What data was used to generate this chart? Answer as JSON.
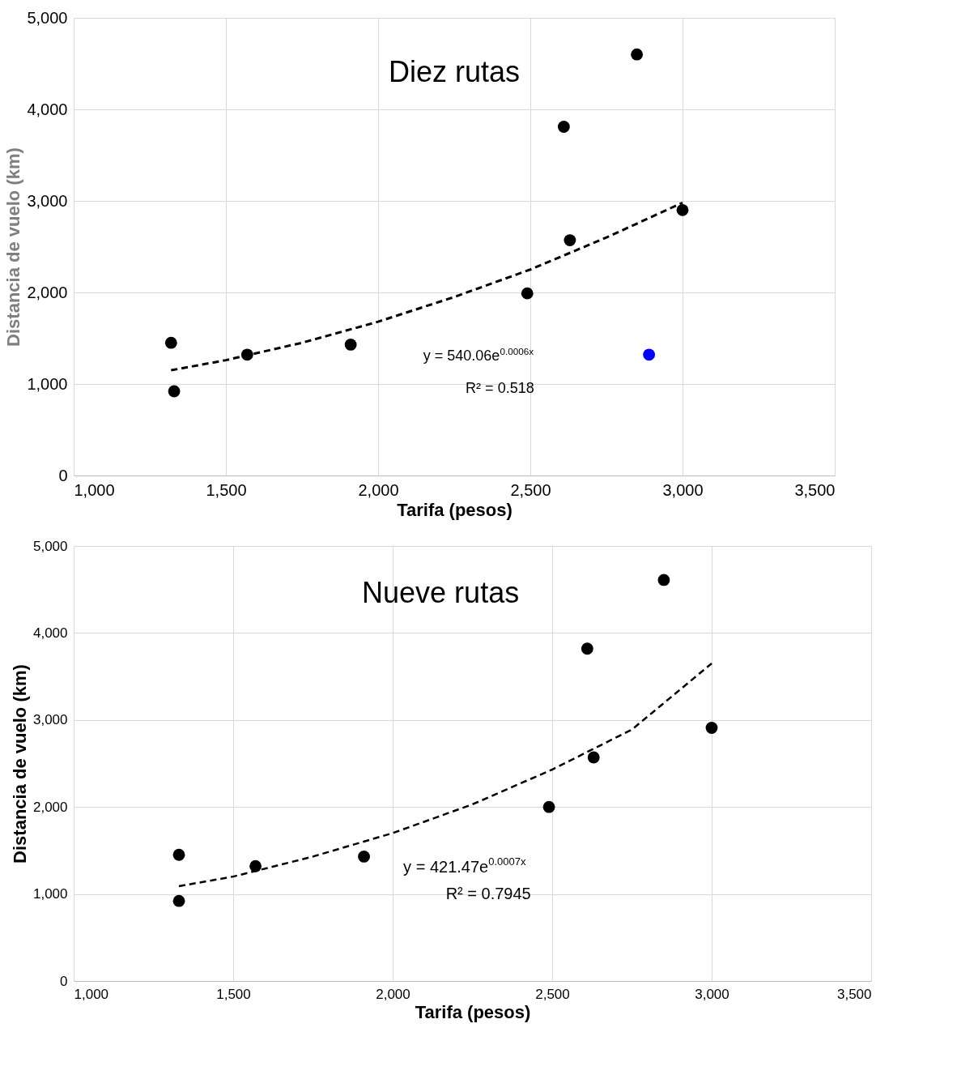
{
  "chart_data": [
    {
      "type": "scatter",
      "xlabel": "Tarifa (pesos)",
      "ylabel": "Distancia  de vuelo (km)",
      "annotations": [
        "Diez rutas",
        "y = 540.06e$^{0.0006x}$",
        "R² = 0.518"
      ],
      "xlim": [
        1000,
        3500
      ],
      "xticks": [
        {
          "value": 1000,
          "label": "1,000"
        },
        {
          "value": 1500,
          "label": "1,500"
        },
        {
          "value": 2000,
          "label": "2,000"
        },
        {
          "value": 2500,
          "label": "2,500"
        },
        {
          "value": 3000,
          "label": "3,000"
        },
        {
          "value": 3500,
          "label": "3,500"
        }
      ],
      "ylim": [
        0,
        5000
      ],
      "yticks": [
        0,
        {
          "value": 1000,
          "label": "1,000"
        },
        {
          "value": 2000,
          "label": "2,000"
        },
        {
          "value": 3000,
          "label": "3,000"
        },
        {
          "value": 4000,
          "label": "4,000"
        },
        {
          "value": 5000,
          "label": "5,000"
        }
      ],
      "grid": true,
      "marker": "circle",
      "series": [
        {
          "type": "scatter",
          "color": "#000000",
          "x": [
            1320,
            1330,
            1570,
            1910,
            2490,
            2610,
            2630,
            2850,
            3000
          ],
          "values": [
            1450,
            920,
            1320,
            1430,
            1990,
            3810,
            2570,
            4600,
            2900
          ]
        },
        {
          "type": "scatter",
          "color": "#0000ff",
          "x": [
            2890
          ],
          "values": [
            1320
          ]
        },
        {
          "type": "line",
          "marker": "none",
          "line_style": "dashed",
          "color": "#000000",
          "x": [
            1320,
            1500,
            1750,
            2000,
            2250,
            2500,
            2750,
            3000
          ],
          "values": [
            1150,
            1260,
            1450,
            1680,
            1950,
            2250,
            2600,
            2980
          ]
        }
      ]
    },
    {
      "type": "scatter",
      "xlabel": "Tarifa (pesos)",
      "ylabel": "Distancia de vuelo (km)",
      "annotations": [
        "Nueve rutas",
        "y = 421.47e$^{0.0007x}$",
        "R² = 0.7945"
      ],
      "xlim": [
        1000,
        3500
      ],
      "xticks": [
        {
          "value": 1000,
          "label": "1,000"
        },
        {
          "value": 1500,
          "label": "1,500"
        },
        {
          "value": 2000,
          "label": "2,000"
        },
        {
          "value": 2500,
          "label": "2,500"
        },
        {
          "value": 3000,
          "label": "3,000"
        },
        {
          "value": 3500,
          "label": "3,500"
        }
      ],
      "ylim": [
        0,
        5000
      ],
      "yticks": [
        0,
        {
          "value": 1000,
          "label": "1,000"
        },
        {
          "value": 2000,
          "label": "2,000"
        },
        {
          "value": 3000,
          "label": "3,000"
        },
        {
          "value": 4000,
          "label": "4,000"
        },
        {
          "value": 5000,
          "label": "5,000"
        }
      ],
      "grid": true,
      "marker": "circle",
      "series": [
        {
          "type": "scatter",
          "color": "#000000",
          "x": [
            1330,
            1330,
            1570,
            1910,
            2490,
            2610,
            2630,
            2850,
            3000
          ],
          "values": [
            1450,
            920,
            1320,
            1430,
            2000,
            3820,
            2570,
            4610,
            2910
          ]
        },
        {
          "type": "line",
          "marker": "none",
          "line_style": "dashed",
          "color": "#000000",
          "x": [
            1330,
            1500,
            1750,
            2000,
            2250,
            2500,
            2750,
            3000
          ],
          "values": [
            1090,
            1200,
            1430,
            1700,
            2030,
            2430,
            2890,
            3650
          ]
        }
      ]
    }
  ]
}
